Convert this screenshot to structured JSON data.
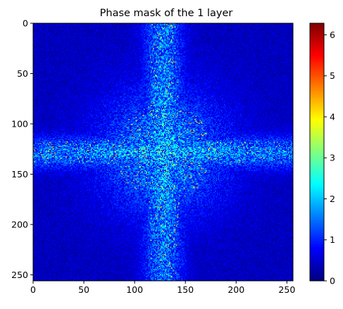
{
  "chart_data": {
    "type": "heatmap",
    "title": "Phase mask of the 1 layer",
    "xlabel": "",
    "ylabel": "",
    "colormap": "jet",
    "grid": false,
    "xlim": [
      0,
      256
    ],
    "ylim": [
      256,
      0
    ],
    "vlim": [
      0,
      6.283
    ],
    "xticks": [
      "0",
      "50",
      "100",
      "150",
      "200",
      "250"
    ],
    "yticks": [
      "0",
      "50",
      "100",
      "150",
      "200",
      "250"
    ],
    "colorbar_ticks": [
      "0",
      "1",
      "2",
      "3",
      "4",
      "5",
      "6"
    ],
    "grid_size": [
      256,
      256
    ],
    "pattern": "cross",
    "cross_center": [
      128,
      128
    ],
    "typical_values": {
      "background": 0.5,
      "cross_arms": 1.8,
      "peak_speckles": 3.5
    }
  }
}
